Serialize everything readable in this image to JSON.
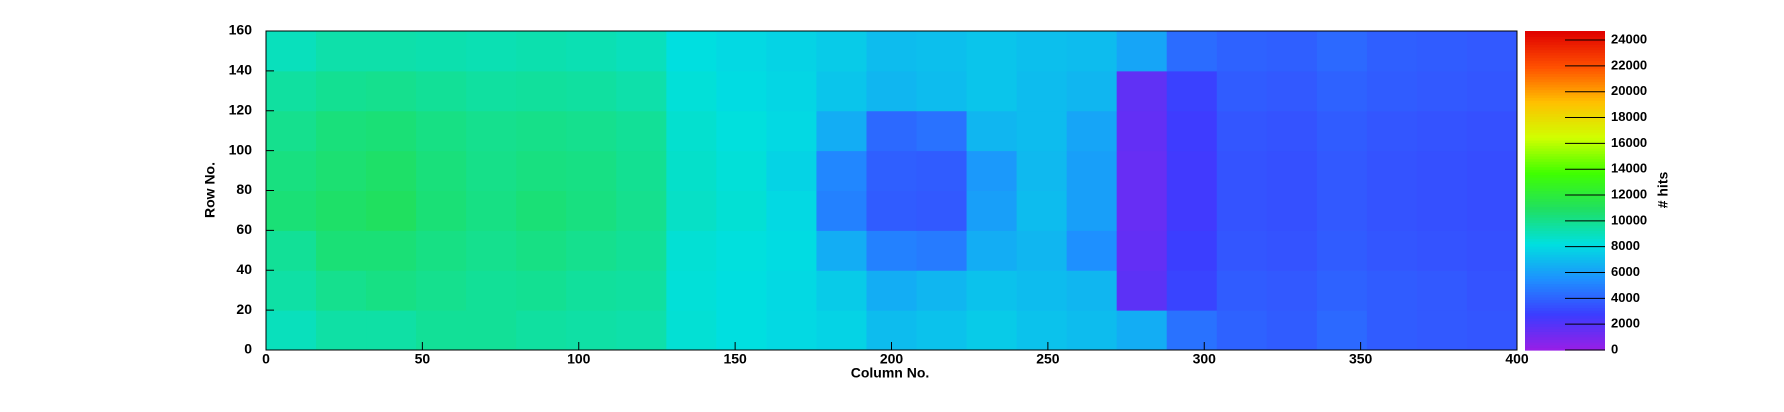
{
  "chart_data": {
    "type": "heatmap",
    "xlabel": "Column No.",
    "ylabel": "Row No.",
    "zlabel": "# hits",
    "xbins": [
      0,
      16,
      32,
      48,
      64,
      80,
      96,
      112,
      128,
      144,
      160,
      176,
      192,
      208,
      224,
      240,
      256,
      272,
      288,
      304,
      320,
      336,
      352,
      368,
      384,
      400
    ],
    "ybins": [
      0,
      20,
      40,
      60,
      80,
      100,
      120,
      140,
      160
    ],
    "z": [
      [
        9000,
        9500,
        9500,
        9800,
        9800,
        9600,
        9500,
        9400,
        8500,
        8200,
        8000,
        7800,
        7000,
        7200,
        7500,
        7200,
        7000,
        6500,
        4500,
        4000,
        3800,
        4200,
        3800,
        3700,
        3600
      ],
      [
        9500,
        10000,
        10200,
        10000,
        9800,
        9900,
        9700,
        9600,
        8400,
        8200,
        8000,
        7500,
        6500,
        6800,
        7200,
        7000,
        6800,
        1800,
        3000,
        3800,
        3700,
        4000,
        3800,
        3700,
        3500
      ],
      [
        9800,
        10500,
        10500,
        10200,
        10000,
        10200,
        10000,
        9800,
        8500,
        8300,
        8100,
        6500,
        5000,
        4800,
        6500,
        6800,
        5500,
        1600,
        2800,
        3600,
        3500,
        3800,
        3600,
        3500,
        3400
      ],
      [
        10500,
        10800,
        11000,
        10500,
        10200,
        10500,
        10300,
        10000,
        8800,
        8500,
        8000,
        5000,
        3800,
        3700,
        6000,
        7000,
        6000,
        1500,
        2600,
        3500,
        3400,
        3700,
        3500,
        3400,
        3300
      ],
      [
        10300,
        10600,
        10800,
        10400,
        10100,
        10300,
        10200,
        9900,
        8700,
        8400,
        7800,
        5200,
        3900,
        3800,
        5800,
        6900,
        6000,
        1500,
        2600,
        3500,
        3400,
        3700,
        3500,
        3400,
        3300
      ],
      [
        10000,
        10400,
        10500,
        10200,
        10000,
        10100,
        10000,
        9800,
        8600,
        8300,
        8000,
        6500,
        4200,
        4500,
        6800,
        7000,
        6200,
        1600,
        2700,
        3600,
        3500,
        3800,
        3600,
        3500,
        3400
      ],
      [
        9600,
        9900,
        10000,
        9800,
        9600,
        9700,
        9600,
        9400,
        8400,
        8100,
        7900,
        7300,
        6800,
        7000,
        7300,
        7000,
        6800,
        1700,
        2900,
        3800,
        3700,
        4000,
        3800,
        3700,
        3600
      ],
      [
        9000,
        9400,
        9400,
        9300,
        9200,
        9300,
        9200,
        9000,
        8200,
        8000,
        7800,
        7500,
        7000,
        7100,
        7300,
        7100,
        7000,
        6200,
        4300,
        4000,
        3900,
        4200,
        3900,
        3800,
        3700
      ]
    ],
    "xlim": [
      0,
      400
    ],
    "xticks": [
      0,
      50,
      100,
      150,
      200,
      250,
      300,
      350,
      400
    ],
    "ylim": [
      0,
      160
    ],
    "yticks": [
      0,
      20,
      40,
      60,
      80,
      100,
      120,
      140,
      160
    ],
    "zlim": [
      0,
      24700
    ],
    "zticks": [
      0,
      2000,
      4000,
      6000,
      8000,
      10000,
      12000,
      14000,
      16000,
      18000,
      20000,
      22000,
      24000
    ],
    "colorscale": [
      "#9a1ee6",
      "#3c3cff",
      "#1e90ff",
      "#00e0e0",
      "#20e060",
      "#40ff00",
      "#d0ff00",
      "#ffc000",
      "#ff5000",
      "#e00000"
    ]
  }
}
